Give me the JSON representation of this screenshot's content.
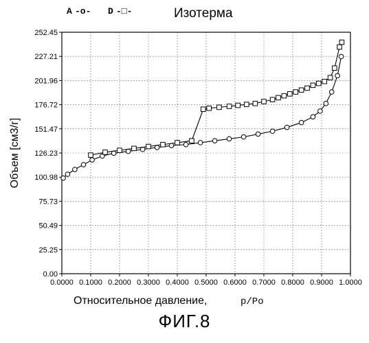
{
  "chart_data": {
    "type": "line",
    "title": "Изотерма",
    "xlabel": "Относительное давление,",
    "xlabel_unit": "p/Po",
    "ylabel": "Объем [см3/г]",
    "xlim": [
      0.0,
      1.0
    ],
    "ylim": [
      0.0,
      252.45
    ],
    "x_ticks": [
      "0.0000",
      "0.1000",
      "0.2000",
      "0.3000",
      "0.4000",
      "0.5000",
      "0.6000",
      "0.7000",
      "0.8000",
      "0.9000",
      "1.0000"
    ],
    "y_ticks": [
      "0.00",
      "25.25",
      "50.49",
      "75.73",
      "100.98",
      "126.23",
      "151.47",
      "176.72",
      "201.96",
      "227.21",
      "252.45"
    ],
    "grid": true,
    "legend_position": "top-left",
    "series": [
      {
        "name": "A",
        "marker": "circle",
        "x": [
          0.005,
          0.02,
          0.045,
          0.075,
          0.105,
          0.14,
          0.18,
          0.23,
          0.28,
          0.33,
          0.38,
          0.43,
          0.48,
          0.53,
          0.58,
          0.63,
          0.68,
          0.73,
          0.78,
          0.83,
          0.87,
          0.895,
          0.915,
          0.935,
          0.955,
          0.968
        ],
        "y": [
          100,
          104,
          109,
          114,
          119,
          123,
          126,
          128,
          130,
          132,
          134,
          135,
          137,
          139,
          141,
          143,
          146,
          149,
          153,
          158,
          164,
          170,
          178,
          190,
          207,
          227
        ]
      },
      {
        "name": "D",
        "marker": "square",
        "x": [
          0.97,
          0.962,
          0.945,
          0.93,
          0.91,
          0.89,
          0.87,
          0.85,
          0.83,
          0.81,
          0.79,
          0.77,
          0.75,
          0.73,
          0.7,
          0.67,
          0.64,
          0.61,
          0.58,
          0.545,
          0.51,
          0.49,
          0.45,
          0.4,
          0.35,
          0.3,
          0.25,
          0.2,
          0.15,
          0.1
        ],
        "y": [
          242,
          237,
          215,
          205,
          201,
          199,
          197,
          194,
          192,
          190,
          188,
          186,
          184,
          182,
          180,
          178,
          177,
          176,
          175,
          174,
          173,
          172,
          139,
          137,
          135,
          133,
          131,
          129,
          127,
          124
        ]
      }
    ]
  },
  "legend": {
    "items": [
      {
        "label": "A",
        "line_sample": "-o-"
      },
      {
        "label": "D",
        "line_sample": "-□-"
      }
    ]
  },
  "figure_caption": "ФИГ.8"
}
